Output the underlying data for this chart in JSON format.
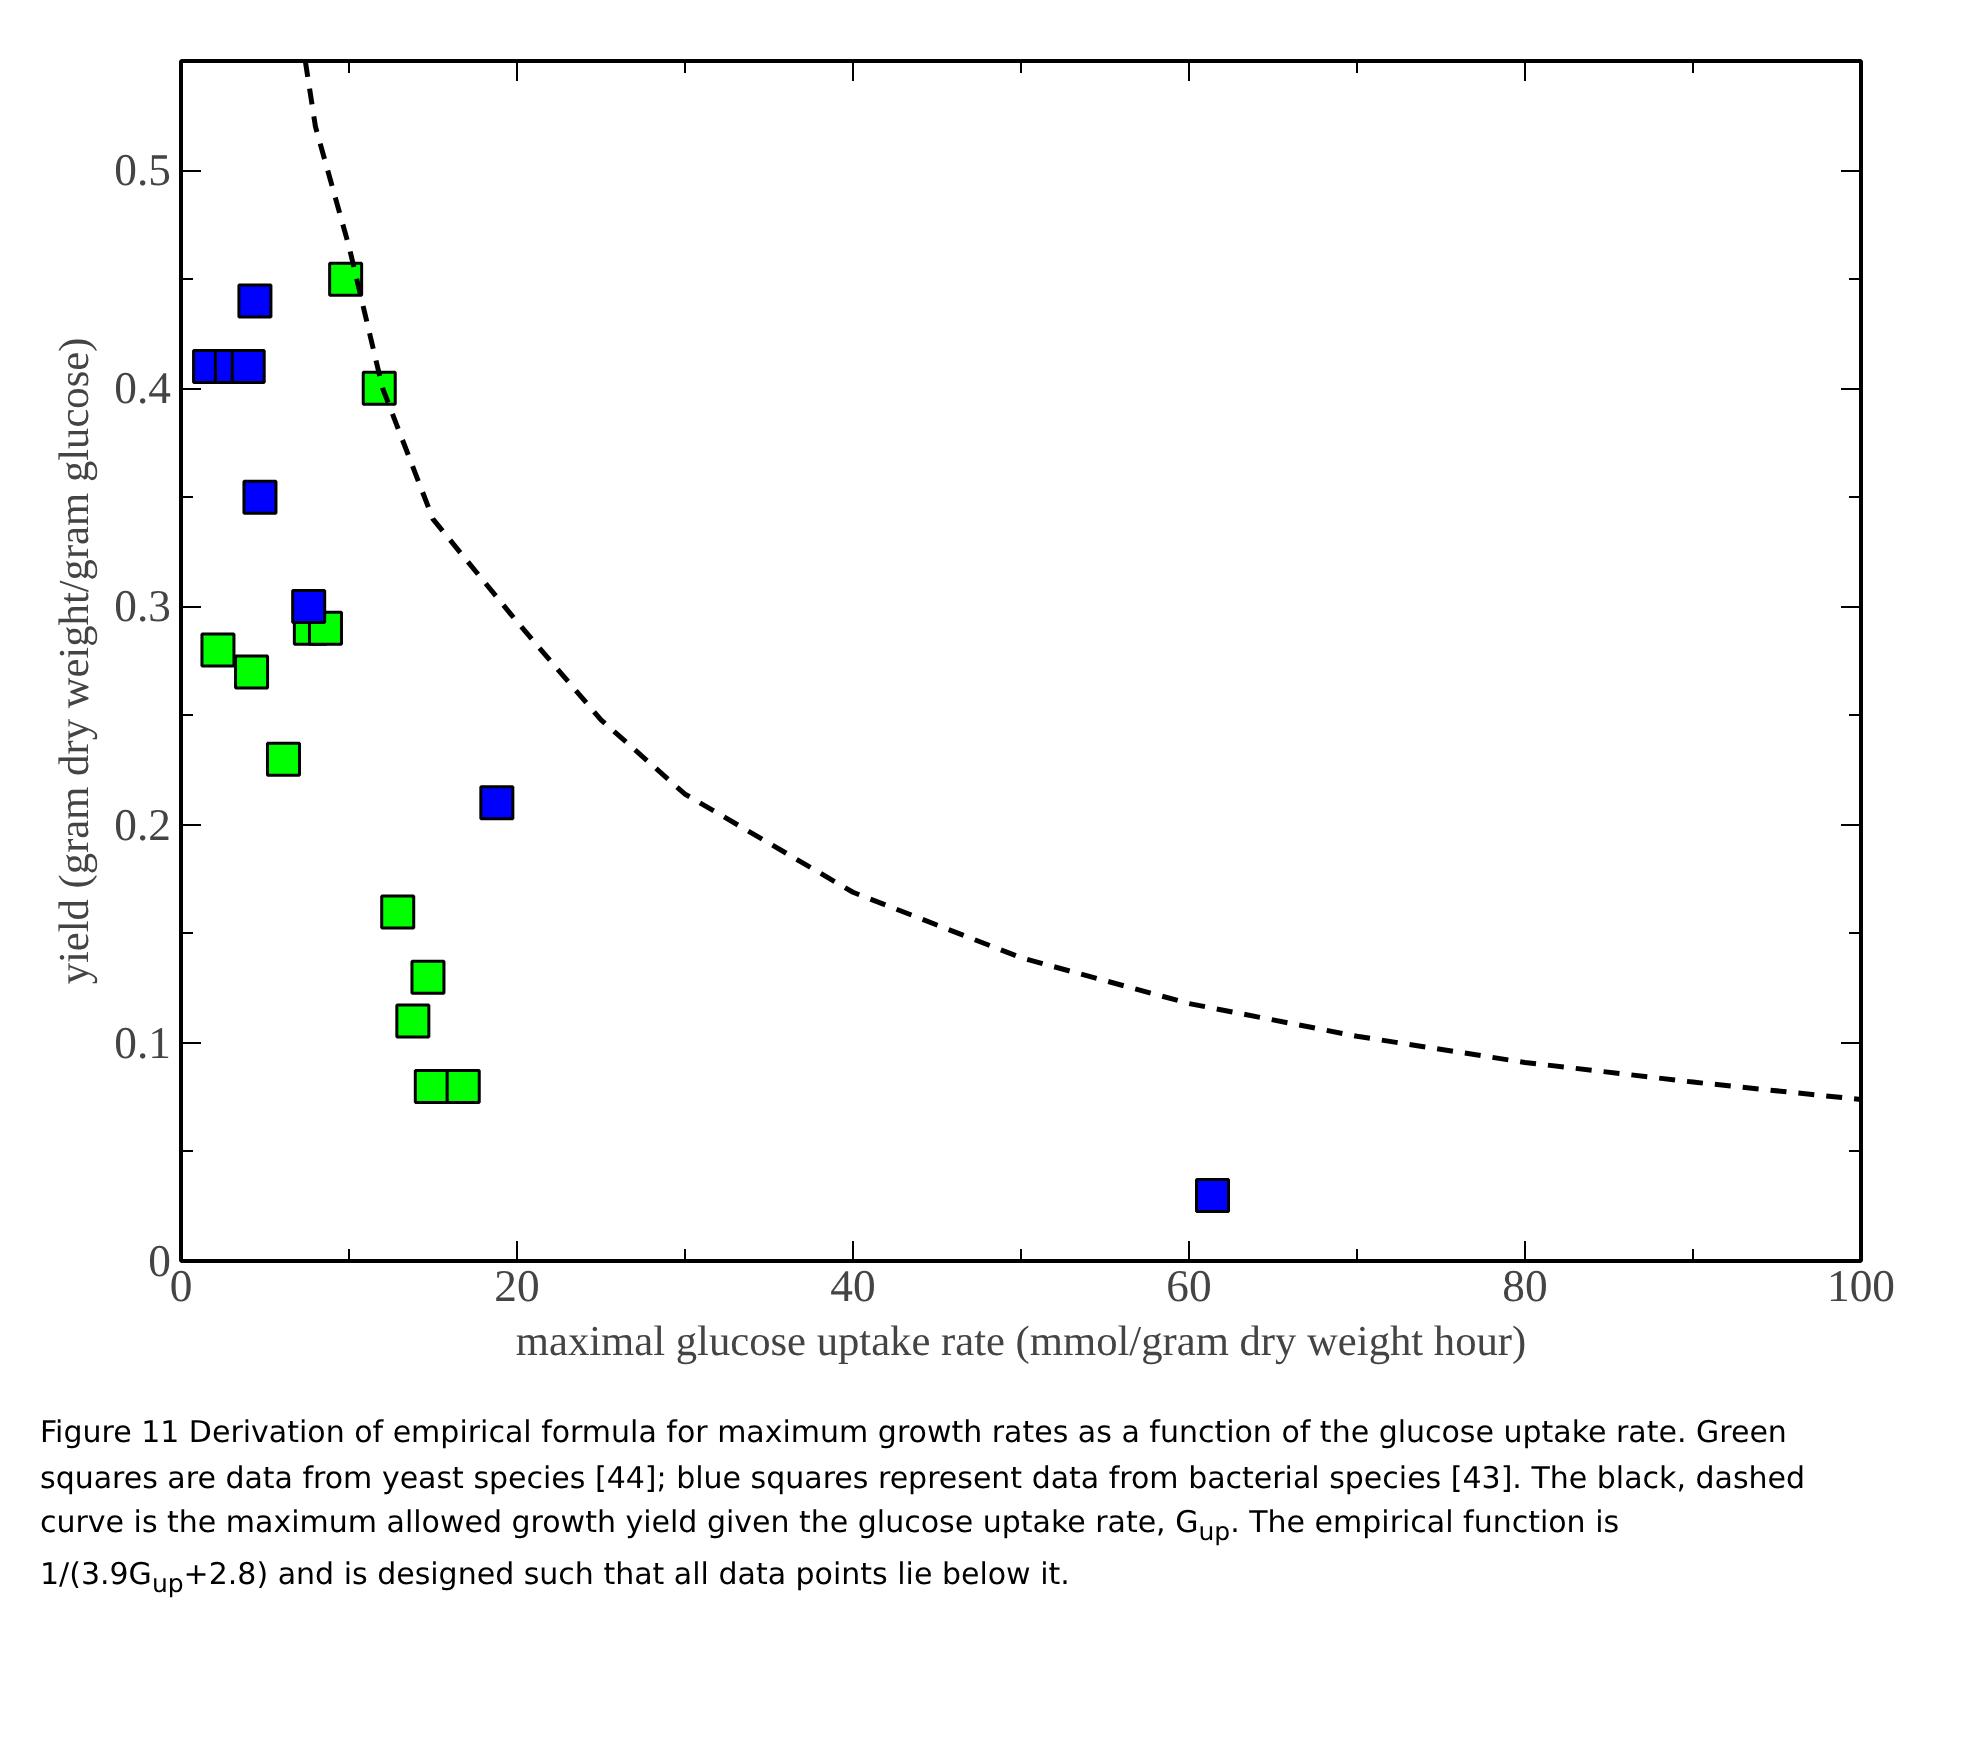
{
  "chart_data": {
    "type": "scatter",
    "xlabel": "maximal glucose uptake rate (mmol/gram dry weight hour)",
    "ylabel": "yield (gram dry weight/gram glucose)",
    "xlim": [
      0,
      100
    ],
    "ylim": [
      0,
      0.55
    ],
    "xticks": [
      0,
      20,
      40,
      60,
      80,
      100
    ],
    "yticks": [
      0,
      0.1,
      0.2,
      0.3,
      0.4,
      0.5
    ],
    "marker": "square",
    "series": [
      {
        "color": "#00ff00",
        "x": [
          9.8,
          11.8,
          2.2,
          4.2,
          7.7,
          8.6,
          6.1,
          12.9,
          14.7,
          13.8,
          14.9,
          16.8
        ],
        "values": [
          0.45,
          0.4,
          0.28,
          0.27,
          0.29,
          0.29,
          0.23,
          0.16,
          0.13,
          0.11,
          0.08,
          0.08
        ]
      },
      {
        "color": "#0000ff",
        "x": [
          1.7,
          3.0,
          4.0,
          4.4,
          4.7,
          7.6,
          18.8,
          61.4
        ],
        "values": [
          0.41,
          0.41,
          0.41,
          0.44,
          0.35,
          0.3,
          0.21,
          0.03
        ]
      },
      {
        "type": "line",
        "color": "#000000",
        "line_style": "dashed",
        "marker": "none",
        "x": [
          7.4,
          8,
          10,
          12,
          15,
          20,
          25,
          30,
          40,
          50,
          60,
          70,
          80,
          90,
          100
        ],
        "values": [
          0.55,
          0.52,
          0.465,
          0.4,
          0.34,
          0.293,
          0.248,
          0.214,
          0.169,
          0.139,
          0.118,
          0.103,
          0.091,
          0.082,
          0.074
        ]
      }
    ],
    "annotations": [
      "Figure 11 Derivation of empirical formula for maximum growth rates as a function of the glucose uptake rate. Green squares are data from yeast species [44]; blue squares represent data from bacterial species [43]. The black, dashed curve is the maximum allowed growth yield given the glucose uptake rate, G$_{up}$. The empirical function is 1/(3.9G$_{up}$+2.8) and is designed such that all data points lie below it."
    ]
  }
}
